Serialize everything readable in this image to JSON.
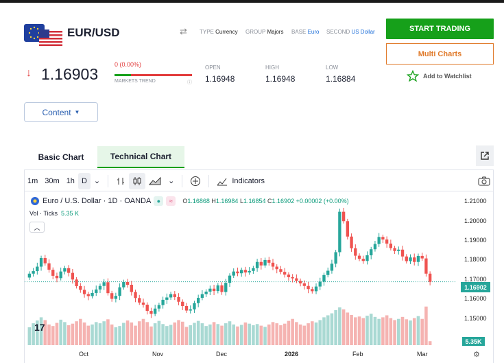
{
  "header": {
    "pair": "EUR/USD",
    "meta": {
      "type_label": "TYPE",
      "type_value": "Currency",
      "group_label": "GROUP",
      "group_value": "Majors",
      "base_label": "BASE",
      "base_value": "Euro",
      "second_label": "SECOND",
      "second_value": "US Dollar"
    },
    "start_trading": "START TRADING",
    "multi_charts": "Multi Charts",
    "watchlist": "Add to Watchlist"
  },
  "quote": {
    "price": "1.16903",
    "change": "0 (0.00%)",
    "trend_label": "MARKETS TREND",
    "stats": [
      {
        "label": "OPEN",
        "value": "1.16948"
      },
      {
        "label": "HIGH",
        "value": "1.16948"
      },
      {
        "label": "LOW",
        "value": "1.16884"
      }
    ]
  },
  "content_button": "Content",
  "tabs": [
    {
      "label": "Basic Chart",
      "active": false
    },
    {
      "label": "Technical Chart",
      "active": true
    }
  ],
  "toolbar": {
    "intervals": [
      "1m",
      "30m",
      "1h",
      "D"
    ],
    "selected_interval": "D",
    "indicators": "Indicators"
  },
  "legend": {
    "symbol": "Euro / U.S. Dollar · 1D · OANDA",
    "o_label": "O",
    "o": "1.16868",
    "h_label": "H",
    "h": "1.16984",
    "l_label": "L",
    "l": "1.16854",
    "c_label": "C",
    "c": "1.16902",
    "change": "+0.00002 (+0.00%)",
    "vol_label": "Vol · Ticks",
    "vol_value": "5.35 K"
  },
  "chart_data": {
    "type": "candlestick",
    "y_ticks": [
      "1.21000",
      "1.20000",
      "1.19000",
      "1.18000",
      "1.17000",
      "1.16000",
      "1.15000"
    ],
    "x_ticks": [
      "Oct",
      "Nov",
      "Dec",
      "2026",
      "Feb",
      "Mar"
    ],
    "last_price": "1.16902",
    "last_volume": "5.35K",
    "ylim": [
      1.145,
      1.2125
    ],
    "colors": {
      "up": "#26a69a",
      "down": "#ef5350",
      "vol_up": "#a9d9d3",
      "vol_down": "#f5b3b1"
    },
    "closes": [
      1.1732,
      1.1745,
      1.1768,
      1.1812,
      1.1785,
      1.1752,
      1.1721,
      1.1709,
      1.1743,
      1.176,
      1.1736,
      1.1702,
      1.1668,
      1.1649,
      1.1627,
      1.1617,
      1.1633,
      1.1651,
      1.1669,
      1.1688,
      1.1632,
      1.1603,
      1.1618,
      1.1662,
      1.1689,
      1.1675,
      1.1638,
      1.1607,
      1.1584,
      1.1573,
      1.1541,
      1.1526,
      1.1553,
      1.1571,
      1.1598,
      1.161,
      1.1627,
      1.1612,
      1.1588,
      1.1566,
      1.1543,
      1.1549,
      1.1581,
      1.1608,
      1.1627,
      1.164,
      1.1655,
      1.1643,
      1.1672,
      1.1638,
      1.1685,
      1.1722,
      1.1743,
      1.1734,
      1.1751,
      1.1738,
      1.1746,
      1.176,
      1.1792,
      1.1774,
      1.1802,
      1.1788,
      1.1768,
      1.1755,
      1.1741,
      1.1727,
      1.1714,
      1.1708,
      1.1695,
      1.1682,
      1.1669,
      1.1653,
      1.1642,
      1.1666,
      1.1691,
      1.1725,
      1.1747,
      1.1783,
      1.1842,
      1.2049,
      1.2001,
      1.1922,
      1.1862,
      1.1824,
      1.1808,
      1.1797,
      1.1826,
      1.1857,
      1.1884,
      1.192,
      1.1907,
      1.1886,
      1.1863,
      1.1848,
      1.1855,
      1.182,
      1.1796,
      1.1815,
      1.1792,
      1.1823,
      1.181,
      1.1732,
      1.169
    ],
    "volumes": [
      0.45,
      0.55,
      0.62,
      0.7,
      0.63,
      0.52,
      0.48,
      0.56,
      0.64,
      0.58,
      0.5,
      0.54,
      0.6,
      0.66,
      0.57,
      0.49,
      0.52,
      0.58,
      0.55,
      0.6,
      0.65,
      0.52,
      0.45,
      0.48,
      0.56,
      0.62,
      0.57,
      0.49,
      0.6,
      0.66,
      0.58,
      0.47,
      0.55,
      0.61,
      0.53,
      0.48,
      0.51,
      0.57,
      0.63,
      0.59,
      0.46,
      0.5,
      0.56,
      0.61,
      0.55,
      0.48,
      0.52,
      0.58,
      0.53,
      0.49,
      0.55,
      0.6,
      0.52,
      0.47,
      0.51,
      0.57,
      0.54,
      0.5,
      0.53,
      0.49,
      0.46,
      0.52,
      0.58,
      0.55,
      0.5,
      0.54,
      0.61,
      0.66,
      0.58,
      0.52,
      0.49,
      0.55,
      0.6,
      0.57,
      0.63,
      0.7,
      0.75,
      0.8,
      0.88,
      0.95,
      0.9,
      0.82,
      0.76,
      0.7,
      0.72,
      0.68,
      0.74,
      0.79,
      0.71,
      0.66,
      0.7,
      0.75,
      0.68,
      0.63,
      0.66,
      0.71,
      0.65,
      0.62,
      0.68,
      0.73,
      0.66,
      0.97,
      0.1
    ]
  }
}
